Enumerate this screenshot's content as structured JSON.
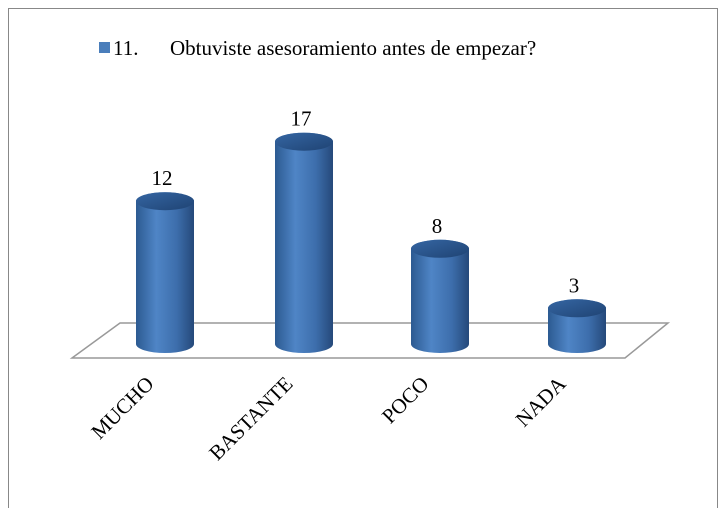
{
  "chart_data": {
    "type": "bar3d",
    "categories": [
      "MUCHO",
      "BASTANTE",
      "POCO",
      "NADA"
    ],
    "series": [
      {
        "name": "11.      Obtuviste asesoramiento antes de empezar?",
        "color": "#4a7ebb",
        "values": [
          12,
          17,
          8,
          3
        ]
      }
    ],
    "legend": "top"
  }
}
